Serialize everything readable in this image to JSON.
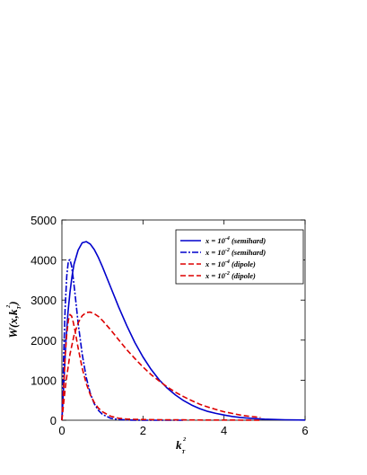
{
  "chart_data": {
    "type": "line",
    "xlabel": "k",
    "xlabel_sub": "T",
    "xlabel_sup": "2",
    "ylabel": "W(x,k",
    "ylabel_sub": "T",
    "ylabel_sup": "2",
    "ylabel_close": ")",
    "xlim": [
      0,
      6
    ],
    "ylim": [
      0,
      5000
    ],
    "xticks": [
      0,
      2,
      4,
      6
    ],
    "yticks": [
      0,
      1000,
      2000,
      3000,
      4000,
      5000
    ],
    "grid": false,
    "legend_position": "top-right",
    "series": [
      {
        "name_base": "x = 10",
        "name_exp": "-4",
        "name_tail": " (semihard)",
        "color": "#0000cc",
        "style": "solid",
        "x": [
          0,
          0.05,
          0.1,
          0.15,
          0.2,
          0.25,
          0.3,
          0.4,
          0.5,
          0.6,
          0.7,
          0.8,
          0.9,
          1.0,
          1.2,
          1.4,
          1.6,
          1.8,
          2.0,
          2.2,
          2.4,
          2.6,
          2.8,
          3.0,
          3.2,
          3.4,
          3.6,
          3.8,
          4.0,
          4.2,
          4.4,
          4.6,
          4.8,
          5.0,
          5.5,
          6.0
        ],
        "y": [
          0,
          1000,
          2000,
          2700,
          3200,
          3600,
          3900,
          4250,
          4430,
          4460,
          4400,
          4260,
          4060,
          3830,
          3330,
          2830,
          2360,
          1940,
          1580,
          1270,
          1010,
          800,
          630,
          490,
          380,
          290,
          220,
          170,
          130,
          95,
          70,
          52,
          38,
          28,
          12,
          5
        ]
      },
      {
        "name_base": "x = 10",
        "name_exp": "-2",
        "name_tail": " (semihard)",
        "color": "#0000cc",
        "style": "dashdot",
        "x": [
          0,
          0.04,
          0.08,
          0.12,
          0.16,
          0.2,
          0.24,
          0.28,
          0.32,
          0.36,
          0.4,
          0.5,
          0.6,
          0.7,
          0.8,
          0.9,
          1.0,
          1.2,
          1.4,
          1.6,
          1.8,
          2.0,
          2.5,
          3.0
        ],
        "y": [
          0,
          1500,
          2800,
          3600,
          3980,
          4010,
          3850,
          3550,
          3180,
          2800,
          2420,
          1650,
          1070,
          670,
          410,
          245,
          145,
          50,
          17,
          6,
          2,
          1,
          0,
          0
        ]
      },
      {
        "name_base": "x = 10",
        "name_exp": "-4",
        "name_tail": " (dipole)",
        "color": "#dd0000",
        "style": "dashed",
        "x": [
          0,
          0.05,
          0.1,
          0.2,
          0.3,
          0.4,
          0.5,
          0.6,
          0.7,
          0.8,
          0.9,
          1.0,
          1.2,
          1.4,
          1.6,
          1.8,
          2.0,
          2.2,
          2.4,
          2.6,
          2.8,
          3.0,
          3.2,
          3.4,
          3.6,
          3.8,
          4.0,
          4.2,
          4.4,
          4.6,
          4.8,
          4.9
        ],
        "y": [
          0,
          500,
          950,
          1650,
          2120,
          2430,
          2610,
          2690,
          2700,
          2660,
          2590,
          2490,
          2260,
          2010,
          1760,
          1540,
          1330,
          1140,
          980,
          830,
          700,
          590,
          490,
          400,
          330,
          270,
          210,
          170,
          130,
          100,
          80,
          70
        ]
      },
      {
        "name_base": "x = 10",
        "name_exp": "-2",
        "name_tail": " (dipole)",
        "color": "#dd0000",
        "style": "dashed",
        "x": [
          0,
          0.04,
          0.08,
          0.12,
          0.16,
          0.2,
          0.24,
          0.28,
          0.32,
          0.36,
          0.4,
          0.5,
          0.6,
          0.7,
          0.8,
          0.9,
          1.0,
          1.2,
          1.4,
          1.6,
          1.8,
          2.0,
          2.5,
          3.0,
          3.5,
          4.0,
          4.5,
          4.9
        ],
        "y": [
          0,
          800,
          1600,
          2150,
          2500,
          2640,
          2600,
          2450,
          2250,
          2020,
          1800,
          1300,
          920,
          640,
          440,
          300,
          210,
          100,
          50,
          30,
          22,
          18,
          12,
          8,
          5,
          4,
          3,
          3
        ]
      }
    ]
  }
}
